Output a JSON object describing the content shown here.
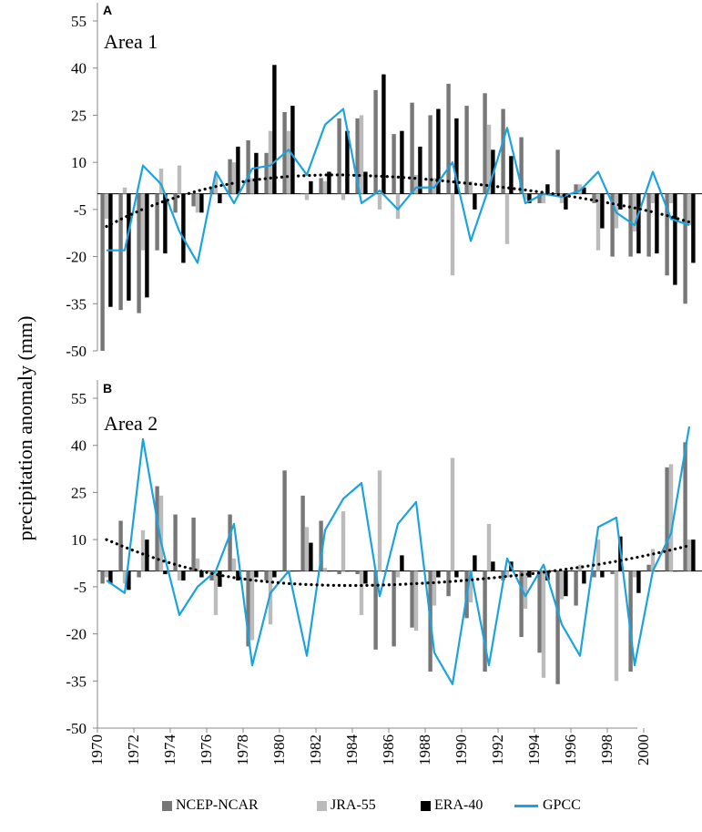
{
  "chart_data": [
    {
      "type": "bar",
      "panel": "A",
      "title": "Area 1",
      "xlabel": "",
      "ylabel": "precipitation anomaly (mm)",
      "ylim": [
        -50,
        55
      ],
      "yticks": [
        55,
        40,
        25,
        10,
        -5,
        -20,
        -35,
        -50
      ],
      "years": [
        1971,
        1972,
        1973,
        1974,
        1975,
        1976,
        1977,
        1978,
        1979,
        1980,
        1981,
        1982,
        1983,
        1984,
        1985,
        1986,
        1987,
        1988,
        1989,
        1990,
        1991,
        1992,
        1993,
        1994,
        1995,
        1996,
        1997,
        1998,
        1999,
        2000,
        2001,
        2002,
        2003
      ],
      "series": [
        {
          "name": "NCEP-NCAR",
          "kind": "bar",
          "color": "#777777",
          "values": [
            -50,
            -37,
            -38,
            -18,
            -6,
            -4,
            2,
            11,
            17,
            13,
            26,
            0,
            5,
            24,
            24,
            33,
            19,
            29,
            25,
            35,
            28,
            32,
            27,
            18,
            -3,
            14,
            3,
            -3,
            -20,
            -20,
            -20,
            -26,
            -35
          ]
        },
        {
          "name": "JRA-55",
          "kind": "bar",
          "color": "#bbbbbb",
          "values": [
            -8,
            2,
            -18,
            8,
            9,
            -6,
            6,
            10,
            5,
            20,
            20,
            -2,
            4,
            -2,
            25,
            -5,
            -8,
            6,
            5,
            -26,
            4,
            22,
            -16,
            -2,
            -3,
            -3,
            3,
            -18,
            -11,
            -12,
            -3,
            -3,
            -10
          ]
        },
        {
          "name": "ERA-40",
          "kind": "bar",
          "color": "#000000",
          "values": [
            -36,
            -34,
            -33,
            -19,
            -22,
            -6,
            -3,
            15,
            13,
            41,
            28,
            4,
            7,
            20,
            7,
            38,
            20,
            15,
            27,
            24,
            -5,
            14,
            12,
            -3,
            3,
            -5,
            2,
            -11,
            -5,
            -19,
            -19,
            -29,
            -22
          ]
        },
        {
          "name": "GPCC",
          "kind": "line",
          "color": "#1ba3dd",
          "values": [
            -18,
            -18,
            9,
            3,
            -12,
            -22,
            7,
            -3,
            8,
            9,
            14,
            6,
            22,
            27,
            -3,
            1,
            -5,
            2,
            2,
            10,
            -15,
            2,
            21,
            -3,
            0,
            -1,
            1,
            7,
            -6,
            -10,
            7,
            -8,
            -10
          ]
        },
        {
          "name": "trend",
          "kind": "dotted-line",
          "color": "#000000",
          "values": [
            -10.4,
            -7.5,
            -4.9,
            -2.7,
            -0.8,
            0.9,
            2.3,
            3.4,
            4.3,
            5.0,
            5.5,
            5.8,
            6.0,
            6.0,
            5.8,
            5.6,
            5.3,
            4.9,
            4.4,
            3.8,
            3.2,
            2.6,
            1.9,
            1.2,
            0.4,
            -0.4,
            -1.3,
            -2.3,
            -3.4,
            -4.5,
            -5.8,
            -7.3,
            -9.0
          ]
        }
      ]
    },
    {
      "type": "bar",
      "panel": "B",
      "title": "Area 2",
      "xlabel": "",
      "ylabel": "precipitation anomaly (mm)",
      "ylim": [
        -50,
        55
      ],
      "yticks": [
        55,
        40,
        25,
        10,
        -5,
        -20,
        -35,
        -50
      ],
      "years": [
        1971,
        1972,
        1973,
        1974,
        1975,
        1976,
        1977,
        1978,
        1979,
        1980,
        1981,
        1982,
        1983,
        1984,
        1985,
        1986,
        1987,
        1988,
        1989,
        1990,
        1991,
        1992,
        1993,
        1994,
        1995,
        1996,
        1997,
        1998,
        1999,
        2000,
        2001,
        2002,
        2003
      ],
      "series": [
        {
          "name": "NCEP-NCAR",
          "kind": "bar",
          "color": "#777777",
          "values": [
            -4,
            16,
            -2,
            27,
            18,
            17,
            -3,
            18,
            -24,
            -3,
            32,
            24,
            16,
            -1,
            -1,
            -25,
            -24,
            -18,
            -32,
            -8,
            -15,
            -32,
            -3,
            -21,
            -26,
            -36,
            -11,
            -2,
            -1,
            -32,
            2,
            33,
            41
          ]
        },
        {
          "name": "JRA-55",
          "kind": "bar",
          "color": "#bbbbbb",
          "values": [
            -2,
            -4,
            13,
            24,
            -3,
            4,
            -14,
            4,
            -22,
            -17,
            -1,
            14,
            1,
            19,
            -14,
            32,
            -2,
            -19,
            -11,
            36,
            -10,
            15,
            -2,
            -12,
            -34,
            -9,
            2,
            10,
            -35,
            -2,
            7,
            34,
            10
          ]
        },
        {
          "name": "ERA-40",
          "kind": "bar",
          "color": "#000000",
          "values": [
            -4,
            -6,
            10,
            -1,
            -3,
            -2,
            -5,
            -3,
            -2,
            -2,
            0,
            9,
            0,
            0,
            -4,
            0,
            5,
            0,
            -2,
            -2,
            5,
            3,
            3,
            -2,
            -3,
            -8,
            -4,
            -2,
            11,
            -7,
            0,
            0,
            10
          ]
        },
        {
          "name": "GPCC",
          "kind": "line",
          "color": "#1ba3dd",
          "values": [
            -3,
            -7,
            42,
            9,
            -14,
            -5,
            0,
            15,
            -30,
            -7,
            0,
            -27,
            13,
            23,
            28,
            -8,
            15,
            22,
            -26,
            -36,
            0,
            -30,
            4,
            -8,
            2,
            -17,
            -27,
            14,
            17,
            -30,
            0,
            12,
            46
          ]
        },
        {
          "name": "trend",
          "kind": "dotted-line",
          "color": "#000000",
          "values": [
            10,
            7.6,
            5.4,
            3.4,
            1.7,
            0.2,
            -1.1,
            -2.1,
            -2.9,
            -3.5,
            -4.0,
            -4.3,
            -4.5,
            -4.6,
            -4.6,
            -4.5,
            -4.3,
            -4.0,
            -3.7,
            -3.3,
            -2.8,
            -2.3,
            -1.7,
            -1.1,
            -0.4,
            0.4,
            1.2,
            2.1,
            3.1,
            4.2,
            5.4,
            6.7,
            8.1
          ]
        }
      ]
    }
  ],
  "shared_x_axis": {
    "xlim": [
      1970,
      2003
    ],
    "tick_labels": [
      "1970",
      "1972",
      "1974",
      "1976",
      "1978",
      "1980",
      "1982",
      "1984",
      "1986",
      "1988",
      "1990",
      "1992",
      "1994",
      "1996",
      "1998",
      "2000"
    ]
  },
  "labels": {
    "panel_a": "A",
    "panel_b": "B",
    "area_a": "Area 1",
    "area_b": "Area 2",
    "ylabel": "precipitation anomaly (mm)"
  },
  "legend": [
    {
      "name": "NCEP-NCAR",
      "kind": "bar",
      "color": "#777777"
    },
    {
      "name": "JRA-55",
      "kind": "bar",
      "color": "#bbbbbb"
    },
    {
      "name": "ERA-40",
      "kind": "bar",
      "color": "#000000"
    },
    {
      "name": "GPCC",
      "kind": "line",
      "color": "#1ba3dd"
    }
  ]
}
